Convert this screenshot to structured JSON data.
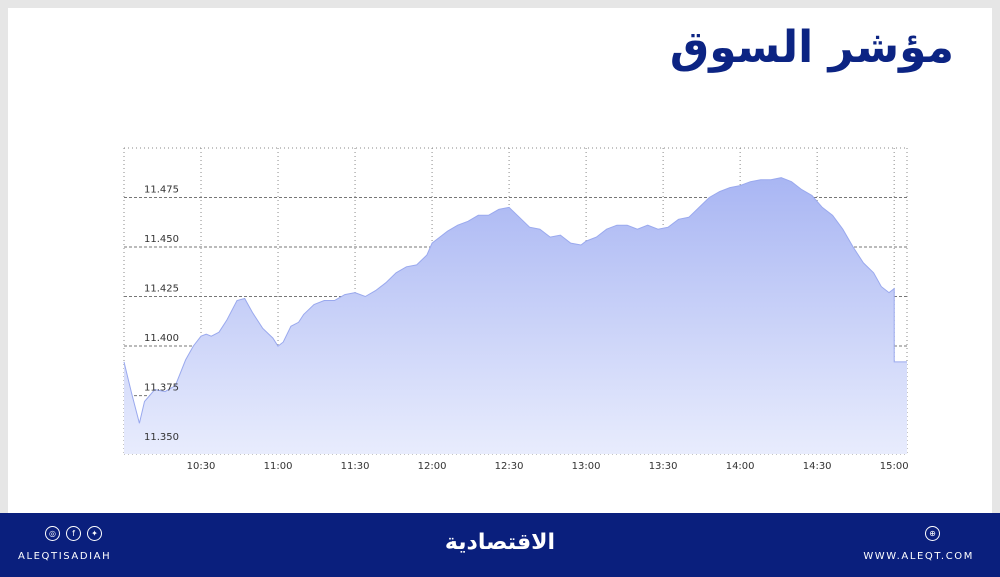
{
  "header": {
    "title": "مؤشر السوق"
  },
  "footer": {
    "handle": "ALEQTISADIAH",
    "logo": "الاقتصادية",
    "website": "WWW.ALEQT.COM",
    "social_icons": [
      "instagram-icon",
      "facebook-icon",
      "twitter-icon"
    ],
    "web_icon": "globe-icon"
  },
  "colors": {
    "brand": "#0a1f7d",
    "fill": "#b9c4f6",
    "title": "#0c2483"
  },
  "chart_data": {
    "type": "area",
    "title": "مؤشر السوق",
    "xlabel": "",
    "ylabel": "",
    "x_ticks": [
      "10:30",
      "11:00",
      "11:30",
      "12:00",
      "12:30",
      "13:00",
      "13:30",
      "14:00",
      "14:30",
      "15:00"
    ],
    "y_ticks": [
      "11.350",
      "11.375",
      "11.400",
      "11.425",
      "11.450",
      "11.475"
    ],
    "xlim": [
      "10:00",
      "15:05"
    ],
    "ylim": [
      11.3455,
      11.5
    ],
    "grid": true,
    "series": [
      {
        "x": [
          "10:00",
          "10:03",
          "10:06",
          "10:08",
          "10:12",
          "10:16",
          "10:20",
          "10:24",
          "10:27",
          "10:30",
          "10:32",
          "10:34",
          "10:37",
          "10:40",
          "10:44",
          "10:47",
          "10:50",
          "10:54",
          "10:58",
          "11:00",
          "11:02",
          "11:05",
          "11:08",
          "11:10",
          "11:14",
          "11:18",
          "11:22",
          "11:26",
          "11:30",
          "11:34",
          "11:38",
          "11:42",
          "11:46",
          "11:50",
          "11:54",
          "11:58",
          "12:00",
          "12:03",
          "12:06",
          "12:10",
          "12:14",
          "12:18",
          "12:22",
          "12:26",
          "12:30",
          "12:34",
          "12:38",
          "12:42",
          "12:46",
          "12:50",
          "12:54",
          "12:58",
          "13:00",
          "13:04",
          "13:08",
          "13:12",
          "13:16",
          "13:20",
          "13:24",
          "13:28",
          "13:32",
          "13:36",
          "13:40",
          "13:44",
          "13:48",
          "13:52",
          "13:56",
          "14:00",
          "14:04",
          "14:08",
          "14:12",
          "14:16",
          "14:20",
          "14:24",
          "14:28",
          "14:32",
          "14:36",
          "14:40",
          "14:44",
          "14:48",
          "14:52",
          "14:55",
          "14:58",
          "15:00",
          "15:00",
          "15:05"
        ],
        "values": [
          11.392,
          11.376,
          11.361,
          11.372,
          11.378,
          11.377,
          11.38,
          11.393,
          11.4,
          11.405,
          11.406,
          11.405,
          11.407,
          11.413,
          11.423,
          11.424,
          11.417,
          11.409,
          11.404,
          11.4,
          11.402,
          11.41,
          11.412,
          11.416,
          11.421,
          11.423,
          11.423,
          11.426,
          11.427,
          11.425,
          11.428,
          11.432,
          11.437,
          11.44,
          11.441,
          11.446,
          11.452,
          11.455,
          11.458,
          11.461,
          11.463,
          11.466,
          11.466,
          11.469,
          11.47,
          11.465,
          11.46,
          11.459,
          11.455,
          11.456,
          11.452,
          11.451,
          11.453,
          11.455,
          11.459,
          11.461,
          11.461,
          11.459,
          11.461,
          11.459,
          11.46,
          11.464,
          11.465,
          11.47,
          11.475,
          11.478,
          11.48,
          11.481,
          11.483,
          11.484,
          11.484,
          11.485,
          11.483,
          11.479,
          11.476,
          11.47,
          11.466,
          11.459,
          11.45,
          11.442,
          11.437,
          11.43,
          11.427,
          11.429,
          11.392,
          11.392
        ]
      }
    ]
  }
}
